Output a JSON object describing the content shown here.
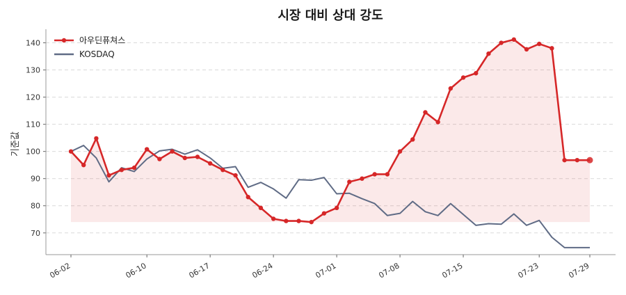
{
  "chart_data": {
    "type": "line",
    "title": "시장 대비 상대 강도",
    "ylabel": "기준값",
    "xlabel": "",
    "ylim": [
      62,
      145
    ],
    "yticks": [
      70,
      80,
      90,
      100,
      110,
      120,
      130,
      140
    ],
    "xticks": [
      "06-02",
      "06-10",
      "06-17",
      "06-24",
      "07-01",
      "07-08",
      "07-15",
      "07-23",
      "07-29"
    ],
    "grid": "y-dashed",
    "legend_position": "top-left",
    "fill_baseline": 74,
    "series": [
      {
        "name": "아우딘퓨쳐스",
        "color": "#d62728",
        "marker": true,
        "x": [
          "06-02",
          "06-03",
          "06-04",
          "06-05",
          "06-06",
          "06-09",
          "06-10",
          "06-11",
          "06-12",
          "06-13",
          "06-16",
          "06-17",
          "06-18",
          "06-19",
          "06-20",
          "06-23",
          "06-24",
          "06-25",
          "06-26",
          "06-27",
          "06-30",
          "07-01",
          "07-02",
          "07-03",
          "07-04",
          "07-07",
          "07-08",
          "07-09",
          "07-10",
          "07-11",
          "07-14",
          "07-15",
          "07-16",
          "07-17",
          "07-18",
          "07-21",
          "07-22",
          "07-23",
          "07-24",
          "07-25",
          "07-28",
          "07-29"
        ],
        "values": [
          100,
          95,
          104.8,
          91.2,
          93.2,
          94,
          100.8,
          97.2,
          100,
          97.6,
          98,
          95.6,
          93.2,
          91.2,
          83.2,
          79.2,
          75.2,
          74.4,
          74.4,
          74,
          77.2,
          79.2,
          88.8,
          90,
          91.6,
          91.6,
          100,
          104.4,
          114.4,
          110.8,
          123.2,
          127.2,
          128.8,
          136,
          140,
          141.2,
          137.6,
          139.6,
          138,
          96.8,
          96.8,
          96.8
        ]
      },
      {
        "name": "KOSDAQ",
        "color": "#5f6b85",
        "marker": false,
        "x": [
          "06-02",
          "06-03",
          "06-04",
          "06-05",
          "06-06",
          "06-09",
          "06-10",
          "06-11",
          "06-12",
          "06-13",
          "06-16",
          "06-17",
          "06-18",
          "06-19",
          "06-20",
          "06-23",
          "06-24",
          "06-25",
          "06-26",
          "06-27",
          "06-30",
          "07-01",
          "07-02",
          "07-03",
          "07-04",
          "07-07",
          "07-08",
          "07-09",
          "07-10",
          "07-11",
          "07-14",
          "07-15",
          "07-16",
          "07-17",
          "07-18",
          "07-21",
          "07-22",
          "07-23",
          "07-24",
          "07-25",
          "07-28",
          "07-29"
        ],
        "values": [
          100,
          102.2,
          97.6,
          88.8,
          94,
          92.6,
          97.2,
          100.2,
          100.8,
          99,
          100.6,
          97.6,
          93.8,
          94.4,
          86.8,
          88.6,
          86.2,
          82.8,
          89.6,
          89.4,
          90.4,
          84.4,
          84.6,
          82.6,
          80.8,
          76.4,
          77.2,
          81.6,
          77.8,
          76.4,
          80.8,
          76.8,
          72.8,
          73.4,
          73.2,
          77,
          72.8,
          74.6,
          68.4,
          64.6,
          64.6,
          64.6
        ]
      }
    ]
  }
}
